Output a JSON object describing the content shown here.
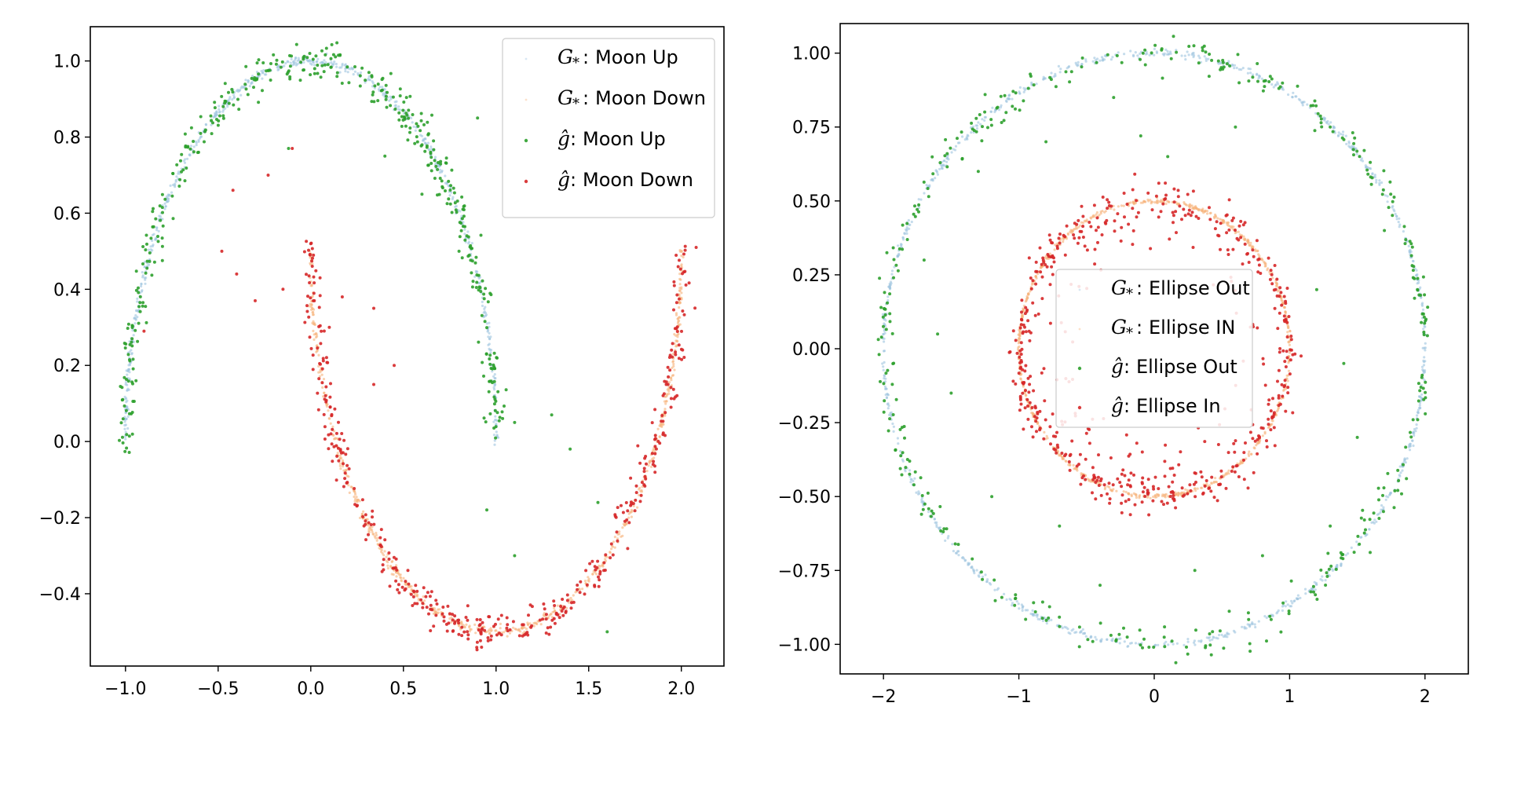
{
  "chart_data": [
    {
      "type": "scatter",
      "title": "",
      "xlabel": "",
      "ylabel": "",
      "xlim": [
        -1.19,
        2.23
      ],
      "ylim": [
        -0.59,
        1.09
      ],
      "xticks": [
        "−1.0",
        "−0.5",
        "0.0",
        "0.5",
        "1.0",
        "1.5",
        "2.0"
      ],
      "xtick_values": [
        -1.0,
        -0.5,
        0.0,
        0.5,
        1.0,
        1.5,
        2.0
      ],
      "yticks": [
        "−0.4",
        "−0.2",
        "0.0",
        "0.2",
        "0.4",
        "0.6",
        "0.8",
        "1.0"
      ],
      "ytick_values": [
        -0.4,
        -0.2,
        0.0,
        0.2,
        0.4,
        0.6,
        0.8,
        1.0
      ],
      "grid": false,
      "legend_position": "top-right",
      "series": [
        {
          "name": "Moon Up",
          "symbol": "G",
          "sub": "*",
          "color": "#9ec4e0",
          "shape": "arc",
          "center": [
            0,
            0
          ],
          "radius": [
            1,
            1
          ],
          "theta_range": [
            0,
            180
          ],
          "jitter": 0.006,
          "count": 600
        },
        {
          "name": "Moon Down",
          "symbol": "G",
          "sub": "*",
          "color": "#f7b27a",
          "shape": "arc",
          "center": [
            1,
            0.5
          ],
          "radius": [
            1,
            1
          ],
          "theta_range": [
            180,
            360
          ],
          "jitter": 0.006,
          "count": 600
        },
        {
          "name": "Moon Up",
          "symbol": "ĝ",
          "sub": "",
          "color": "#2ca02c",
          "shape": "arc",
          "center": [
            0,
            0
          ],
          "radius": [
            1,
            1
          ],
          "theta_range": [
            0,
            180
          ],
          "jitter": 0.025,
          "count": 420,
          "outliers": [
            [
              -0.12,
              0.77
            ],
            [
              0.4,
              0.75
            ],
            [
              0.9,
              0.85
            ],
            [
              1.1,
              0.05
            ],
            [
              1.3,
              0.07
            ],
            [
              1.4,
              -0.02
            ],
            [
              0.95,
              -0.18
            ],
            [
              1.1,
              -0.3
            ],
            [
              1.55,
              -0.16
            ],
            [
              1.6,
              -0.5
            ],
            [
              0.8,
              0.5
            ],
            [
              0.6,
              0.65
            ]
          ]
        },
        {
          "name": "Moon Down",
          "symbol": "ĝ",
          "sub": "",
          "color": "#d62728",
          "shape": "arc",
          "center": [
            1,
            0.5
          ],
          "radius": [
            1,
            1
          ],
          "theta_range": [
            180,
            360
          ],
          "jitter": 0.025,
          "count": 420,
          "outliers": [
            [
              -0.42,
              0.66
            ],
            [
              -0.23,
              0.7
            ],
            [
              -0.1,
              0.77
            ],
            [
              -0.48,
              0.5
            ],
            [
              -0.4,
              0.44
            ],
            [
              -0.3,
              0.37
            ],
            [
              -0.15,
              0.4
            ],
            [
              0.0,
              0.52
            ],
            [
              0.05,
              0.43
            ],
            [
              0.17,
              0.38
            ],
            [
              0.34,
              0.35
            ],
            [
              0.45,
              0.2
            ],
            [
              0.34,
              0.15
            ],
            [
              -0.9,
              0.29
            ],
            [
              0.1,
              0.3
            ],
            [
              2.08,
              0.51
            ]
          ]
        }
      ]
    },
    {
      "type": "scatter",
      "title": "",
      "xlabel": "",
      "ylabel": "",
      "xlim": [
        -2.32,
        2.32
      ],
      "ylim": [
        -1.1,
        1.1
      ],
      "xticks": [
        "−2",
        "−1",
        "0",
        "1",
        "2"
      ],
      "xtick_values": [
        -2,
        -1,
        0,
        1,
        2
      ],
      "yticks": [
        "−1.00",
        "−0.75",
        "−0.50",
        "−0.25",
        "0.00",
        "0.25",
        "0.50",
        "0.75",
        "1.00"
      ],
      "ytick_values": [
        -1.0,
        -0.75,
        -0.5,
        -0.25,
        0.0,
        0.25,
        0.5,
        0.75,
        1.0
      ],
      "grid": false,
      "legend_position": "center",
      "series": [
        {
          "name": "Ellipse Out",
          "symbol": "G",
          "sub": "*",
          "color": "#9ec4e0",
          "shape": "arc",
          "center": [
            0,
            0
          ],
          "radius": [
            2,
            1
          ],
          "theta_range": [
            0,
            360
          ],
          "jitter": 0.006,
          "count": 900
        },
        {
          "name": "Ellipse IN",
          "symbol": "G",
          "sub": "*",
          "color": "#f7b27a",
          "shape": "arc",
          "center": [
            0,
            0
          ],
          "radius": [
            1,
            0.5
          ],
          "theta_range": [
            0,
            360
          ],
          "jitter": 0.004,
          "count": 700
        },
        {
          "name": "Ellipse Out",
          "symbol": "ĝ",
          "sub": "",
          "color": "#2ca02c",
          "shape": "arc",
          "center": [
            0,
            0
          ],
          "radius": [
            2,
            1
          ],
          "theta_range": [
            0,
            360
          ],
          "jitter": 0.03,
          "count": 380,
          "outliers": [
            [
              -1.5,
              -0.15
            ],
            [
              -1.2,
              -0.5
            ],
            [
              -0.7,
              -0.6
            ],
            [
              -0.4,
              -0.8
            ],
            [
              0.3,
              -0.75
            ],
            [
              0.8,
              -0.7
            ],
            [
              1.3,
              -0.6
            ],
            [
              1.5,
              -0.3
            ],
            [
              1.7,
              0.4
            ],
            [
              1.3,
              0.75
            ],
            [
              0.6,
              0.75
            ],
            [
              0.1,
              0.65
            ],
            [
              -0.3,
              0.85
            ],
            [
              -0.8,
              0.7
            ],
            [
              -1.3,
              0.6
            ],
            [
              -1.7,
              0.3
            ],
            [
              -1.6,
              0.05
            ],
            [
              1.2,
              0.2
            ],
            [
              -0.1,
              0.72
            ],
            [
              1.4,
              -0.05
            ]
          ]
        },
        {
          "name": "Ellipse In",
          "symbol": "ĝ",
          "sub": "",
          "color": "#d62728",
          "shape": "arc",
          "center": [
            0,
            0
          ],
          "radius": [
            1,
            0.5
          ],
          "theta_range": [
            0,
            360
          ],
          "jitter": 0.035,
          "count": 380,
          "fill_count": 160
        }
      ]
    }
  ]
}
